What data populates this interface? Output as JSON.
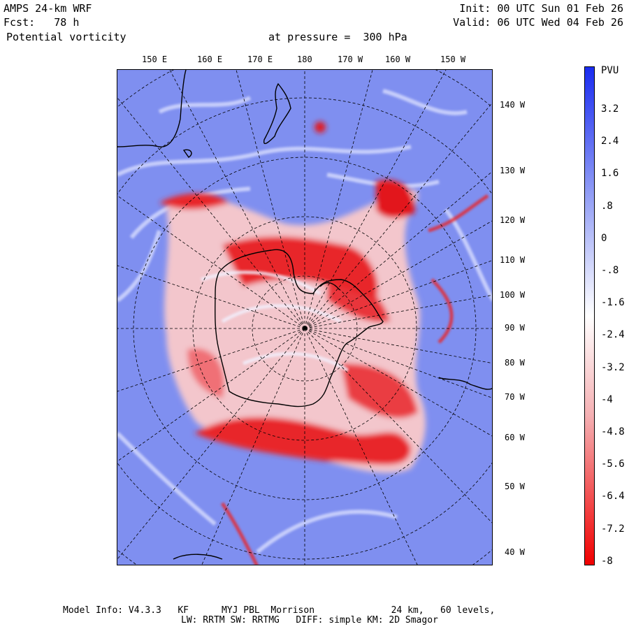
{
  "header": {
    "model": "AMPS 24-km WRF",
    "forecast": "Fcst:   78 h",
    "field": "Potential vorticity",
    "level": "at pressure =  300 hPa",
    "init": "Init: 00 UTC Sun 01 Feb 26",
    "valid": "Valid: 06 UTC Wed 04 Feb 26"
  },
  "map": {
    "top_labels": [
      "150 E",
      "160 E",
      "170 E",
      "180",
      "170 W",
      "160 W",
      "150 W"
    ],
    "right_labels": [
      "140 W",
      "130 W",
      "120 W",
      "110 W",
      "100 W",
      "90 W",
      "80 W",
      "70 W",
      "60 W",
      "50 W",
      "40 W"
    ],
    "field_colors": {
      "positive": "#4b5ff0",
      "background": "#7f8ff0",
      "negative": "#e8262a",
      "neutral": "#f2f2ff"
    }
  },
  "colorbar": {
    "unit": "PVU",
    "ticks": [
      "3.2",
      "2.4",
      "1.6",
      ".8",
      "0",
      "-.8",
      "-1.6",
      "-2.4",
      "-3.2",
      "-4",
      "-4.8",
      "-5.6",
      "-6.4",
      "-7.2",
      "-8"
    ],
    "top_color": "#1a2cf0",
    "bottom_color": "#f00000"
  },
  "footer": {
    "line1": "Model Info: V4.3.3   KF      MYJ PBL  Morrison              24 km,   60 levels,",
    "line2": "LW: RRTM SW: RRTMG   DIFF: simple KM: 2D Smagor"
  }
}
